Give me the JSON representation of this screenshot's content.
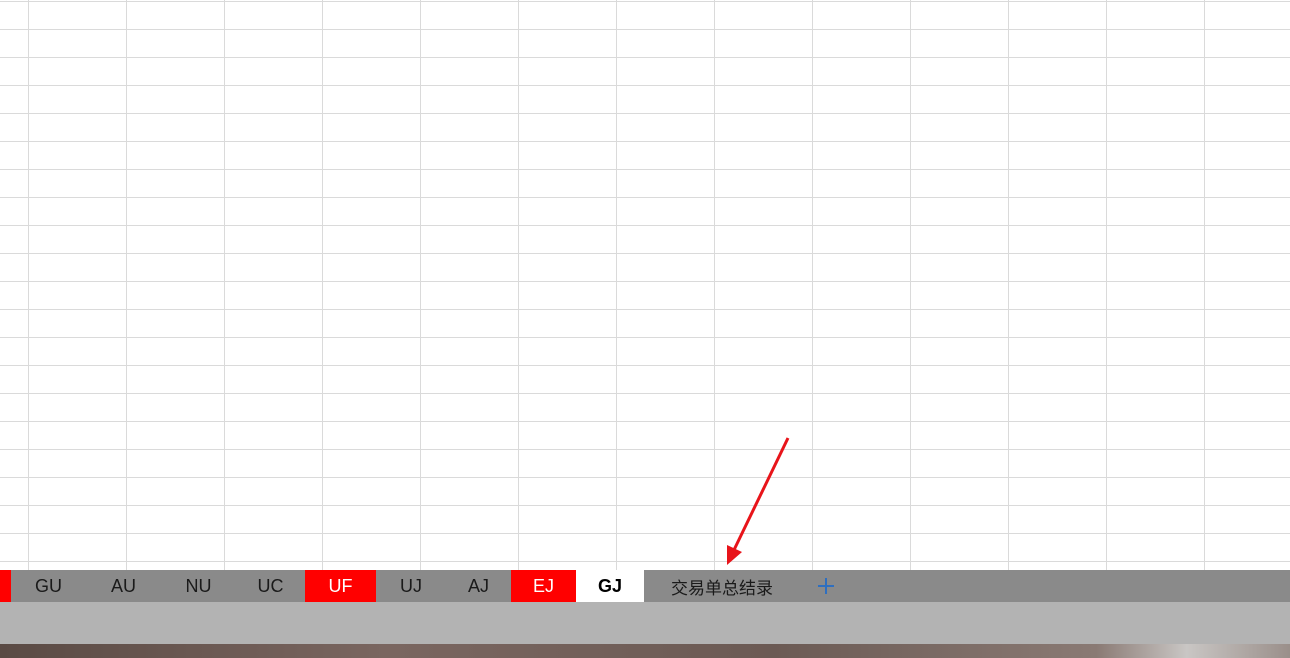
{
  "sheet_tabs": [
    {
      "label": "GU",
      "color": "#8a8a8a"
    },
    {
      "label": "AU",
      "color": "#8a8a8a"
    },
    {
      "label": "NU",
      "color": "#8a8a8a"
    },
    {
      "label": "UC",
      "color": "#8a8a8a"
    },
    {
      "label": "UF",
      "color": "#ff0000"
    },
    {
      "label": "UJ",
      "color": "#8a8a8a"
    },
    {
      "label": "AJ",
      "color": "#8a8a8a"
    },
    {
      "label": "EJ",
      "color": "#ff0000"
    },
    {
      "label": "GJ",
      "color": "#ffffff",
      "active": true
    },
    {
      "label": "交易单总结录",
      "color": "#8a8a8a"
    }
  ],
  "add_sheet_icon": "plus-icon",
  "annotation": {
    "type": "arrow",
    "color": "#e8141a"
  },
  "colors": {
    "tab_bar": "#8a8a8a",
    "status_bar": "#b3b3b3",
    "gridline": "#dadada",
    "accent_red": "#ff0000",
    "plus": "#2e6fc0"
  }
}
